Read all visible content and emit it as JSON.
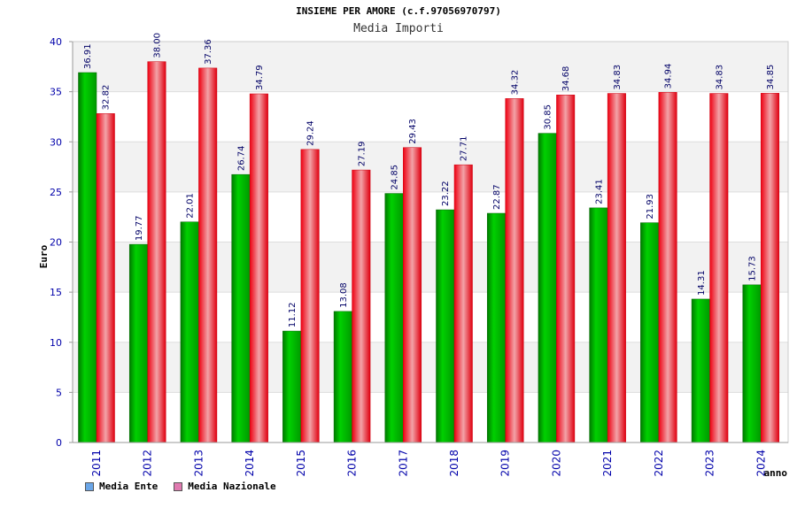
{
  "chart_data": {
    "type": "bar",
    "title": "INSIEME PER AMORE (c.f.97056970797)",
    "subtitle": "Media Importi",
    "xlabel": "anno",
    "ylabel": "Euro",
    "ylim": [
      0,
      40
    ],
    "yticks": [
      0,
      5,
      10,
      15,
      20,
      25,
      30,
      35,
      40
    ],
    "categories": [
      "2011",
      "2012",
      "2013",
      "2014",
      "2015",
      "2016",
      "2017",
      "2018",
      "2019",
      "2020",
      "2021",
      "2022",
      "2023",
      "2024"
    ],
    "series": [
      {
        "name": "Media Ente",
        "color": "#00bb00",
        "legend_color": "#6aa6e8",
        "values": [
          36.91,
          19.77,
          22.01,
          26.74,
          11.12,
          13.08,
          24.85,
          23.22,
          22.87,
          30.85,
          23.41,
          21.93,
          14.31,
          15.73
        ]
      },
      {
        "name": "Media Nazionale",
        "color": "#ee1122",
        "legend_color": "#e07ab0",
        "values": [
          32.82,
          38.0,
          37.36,
          34.79,
          29.24,
          27.19,
          29.43,
          27.71,
          34.32,
          34.68,
          34.83,
          34.94,
          34.83,
          34.85
        ]
      }
    ],
    "value_labels": [
      [
        "36.91",
        "19.77",
        "22.01",
        "26.74",
        "11.12",
        "13.08",
        "24.85",
        "23.22",
        "22.87",
        "30.85",
        "23.41",
        "21.93",
        "14.31",
        "15.73"
      ],
      [
        "32.82",
        "38.00",
        "37.36",
        "34.79",
        "29.24",
        "27.19",
        "29.43",
        "27.71",
        "34.32",
        "34.68",
        "34.83",
        "34.94",
        "34.83",
        "34.85"
      ]
    ],
    "grid": true,
    "legend_position": "bottom-left"
  }
}
